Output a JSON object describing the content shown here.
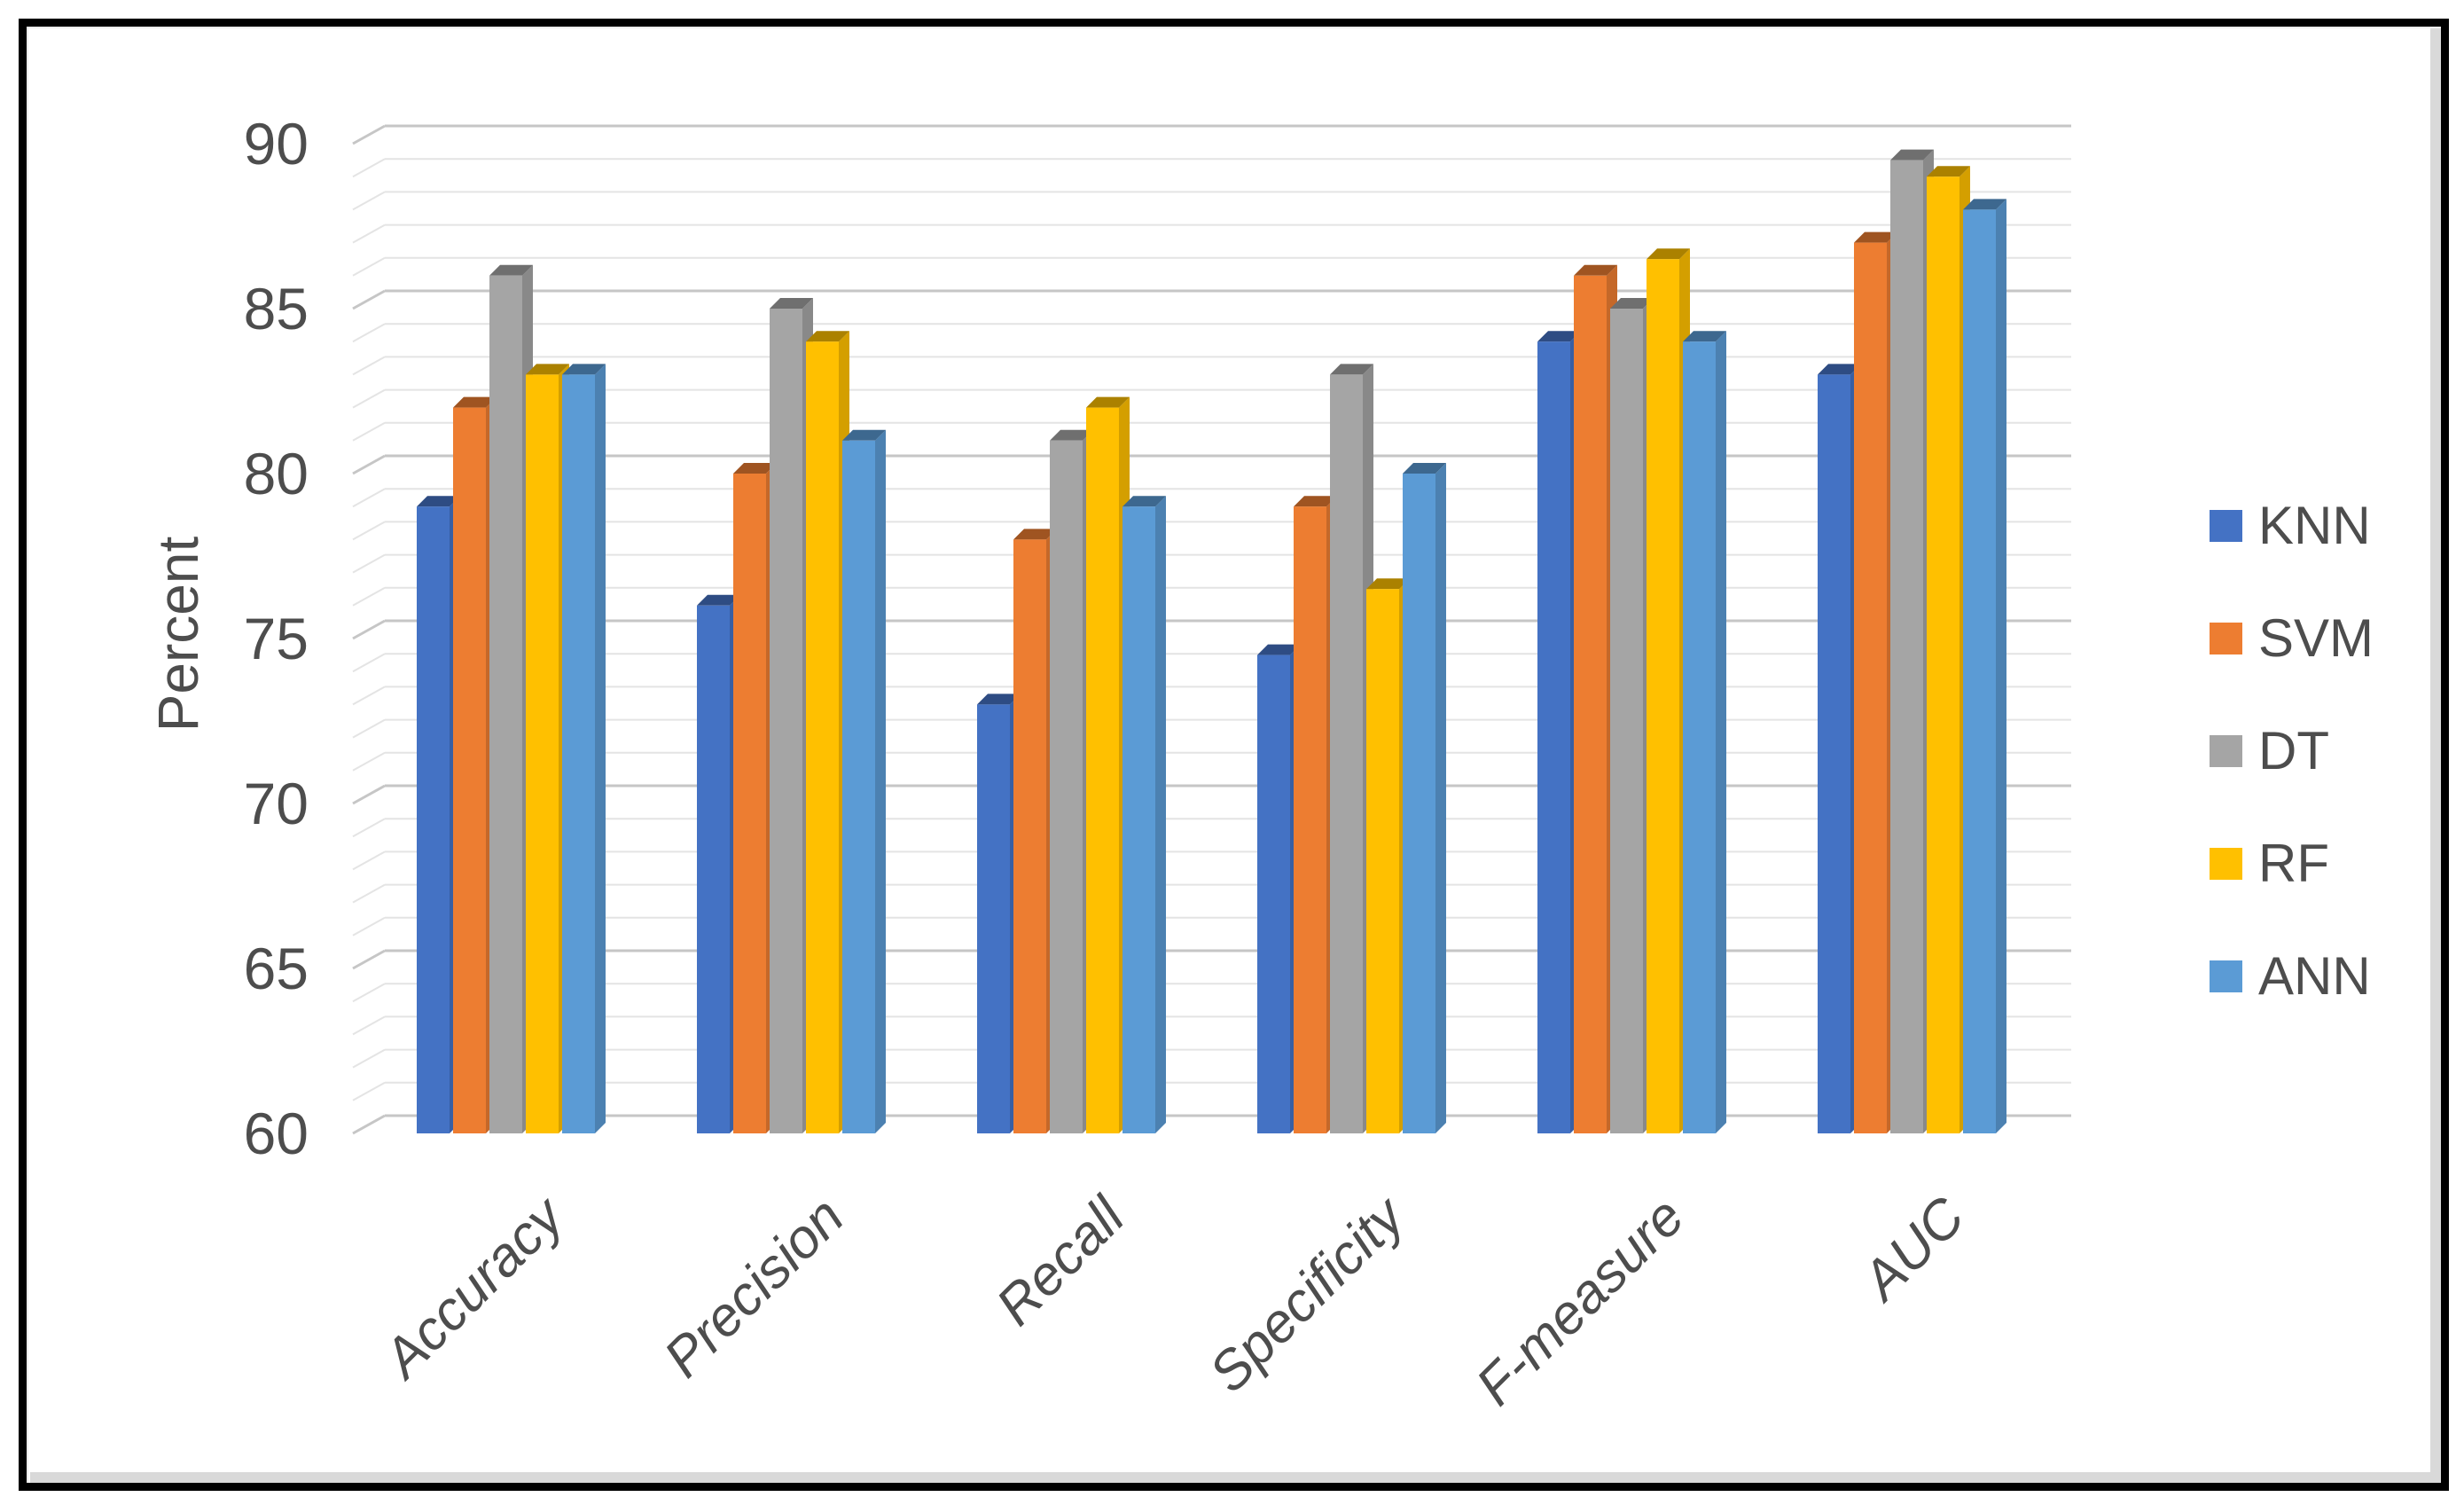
{
  "figure": {
    "border_color": "#000000",
    "background_color": "#ffffff",
    "edge_shadow_color": "#d9d9d9",
    "text_color": "#4d4d4d"
  },
  "chart_data": {
    "type": "bar",
    "projection": "3d-clustered",
    "title": "",
    "xlabel": "",
    "ylabel": "Percent",
    "categories": [
      "Accuracy",
      "Precision",
      "Recall",
      "Specificity",
      "F-measure",
      "AUC"
    ],
    "series": [
      {
        "name": "KNN",
        "color": "#4472C4",
        "values": [
          79,
          76,
          73,
          74.5,
          84,
          83
        ]
      },
      {
        "name": "SVM",
        "color": "#ED7D31",
        "values": [
          82,
          80,
          78,
          79,
          86,
          87
        ]
      },
      {
        "name": "DT",
        "color": "#A5A5A5",
        "values": [
          86,
          85,
          81,
          83,
          85,
          89.5
        ]
      },
      {
        "name": "RF",
        "color": "#FFC000",
        "values": [
          83,
          84,
          82,
          76.5,
          86.5,
          89
        ]
      },
      {
        "name": "ANN",
        "color": "#5B9BD5",
        "values": [
          83,
          81,
          79,
          80,
          84,
          88
        ]
      }
    ],
    "y_axis": {
      "min": 60,
      "max": 90,
      "major_step": 5,
      "minor_step": 1,
      "major_ticks": [
        60,
        65,
        70,
        75,
        80,
        85,
        90
      ]
    },
    "legend": {
      "position": "right",
      "entries": [
        "KNN",
        "SVM",
        "DT",
        "RF",
        "ANN"
      ]
    },
    "grid": {
      "major": true,
      "minor": true,
      "major_color": "#c6c6c6",
      "minor_color": "#e4e4e4"
    }
  }
}
